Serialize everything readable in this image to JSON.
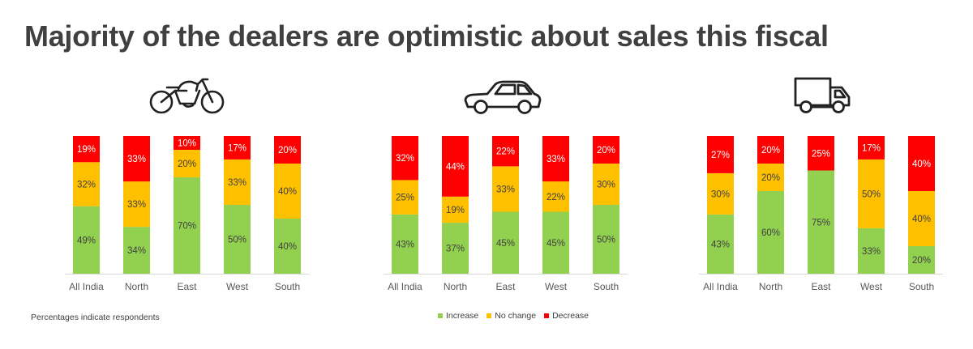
{
  "title": "Majority of the dealers are optimistic about sales this fiscal",
  "footnote": "Percentages indicate respondents",
  "colors": {
    "increase": "#92d050",
    "no_change": "#ffc000",
    "decrease": "#ff0000"
  },
  "icons": [
    "motorcycle-icon",
    "car-icon",
    "truck-icon"
  ],
  "legend": [
    {
      "label": "Increase",
      "color": "#92d050"
    },
    {
      "label": "No change",
      "color": "#ffc000"
    },
    {
      "label": "Decrease",
      "color": "#ff0000"
    }
  ],
  "chart_data": [
    {
      "type": "bar",
      "stacked": true,
      "categories": [
        "All India",
        "North",
        "East",
        "West",
        "South"
      ],
      "ylim": [
        0,
        100
      ],
      "grid": false,
      "series": [
        {
          "name": "Increase",
          "values": [
            49,
            34,
            70,
            50,
            40
          ],
          "labels": [
            "49%",
            "34%",
            "70%",
            "50%",
            "40%"
          ]
        },
        {
          "name": "No change",
          "values": [
            32,
            33,
            20,
            33,
            40
          ],
          "labels": [
            "32%",
            "33%",
            "20%",
            "33%",
            "40%"
          ]
        },
        {
          "name": "Decrease",
          "values": [
            19,
            33,
            10,
            17,
            20
          ],
          "labels": [
            "19%",
            "33%",
            "10%",
            "17%",
            "20%"
          ]
        }
      ]
    },
    {
      "type": "bar",
      "stacked": true,
      "categories": [
        "All India",
        "North",
        "East",
        "West",
        "South"
      ],
      "ylim": [
        0,
        100
      ],
      "grid": false,
      "series": [
        {
          "name": "Increase",
          "values": [
            43,
            37,
            45,
            45,
            50
          ],
          "labels": [
            "43%",
            "37%",
            "45%",
            "45%",
            "50%"
          ]
        },
        {
          "name": "No change",
          "values": [
            25,
            19,
            33,
            22,
            30
          ],
          "labels": [
            "25%",
            "19%",
            "33%",
            "22%",
            "30%"
          ]
        },
        {
          "name": "Decrease",
          "values": [
            32,
            44,
            22,
            33,
            20
          ],
          "labels": [
            "32%",
            "44%",
            "22%",
            "33%",
            "20%"
          ]
        }
      ]
    },
    {
      "type": "bar",
      "stacked": true,
      "categories": [
        "All India",
        "North",
        "East",
        "West",
        "South"
      ],
      "ylim": [
        0,
        100
      ],
      "grid": false,
      "series": [
        {
          "name": "Increase",
          "values": [
            43,
            60,
            75,
            33,
            20
          ],
          "labels": [
            "43%",
            "60%",
            "75%",
            "33%",
            "20%"
          ]
        },
        {
          "name": "No change",
          "values": [
            30,
            20,
            0,
            50,
            40
          ],
          "labels": [
            "30%",
            "20%",
            "",
            "50%",
            "40%"
          ]
        },
        {
          "name": "Decrease",
          "values": [
            27,
            20,
            25,
            17,
            40
          ],
          "labels": [
            "27%",
            "20%",
            "25%",
            "17%",
            "40%"
          ]
        }
      ]
    }
  ]
}
